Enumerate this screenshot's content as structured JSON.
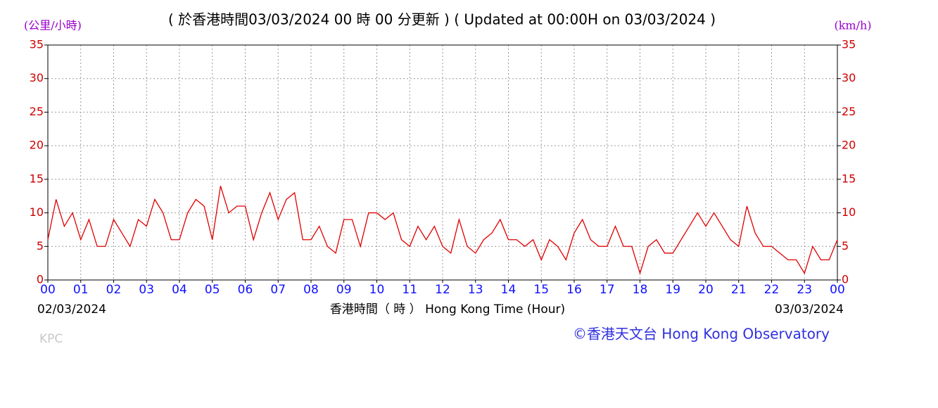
{
  "chart_data": {
    "type": "line",
    "title": "( 於香港時間03/03/2024 00 時 00 分更新 ) ( Updated at 00:00H on 03/03/2024 )",
    "ylabel": "(公里/小時)",
    "y2label": "(km/h)",
    "xlabel": "香港時間（ 時 ） Hong Kong Time (Hour)",
    "start_date": "02/03/2024",
    "end_date": "03/03/2024",
    "watermark": "KPC",
    "credit": "©香港天文台 Hong Kong Observatory",
    "x": [
      0,
      0.25,
      0.5,
      0.75,
      1,
      1.25,
      1.5,
      1.75,
      2,
      2.25,
      2.5,
      2.75,
      3,
      3.25,
      3.5,
      3.75,
      4,
      4.25,
      4.5,
      4.75,
      5,
      5.25,
      5.5,
      5.75,
      6,
      6.25,
      6.5,
      6.75,
      7,
      7.25,
      7.5,
      7.75,
      8,
      8.25,
      8.5,
      8.75,
      9,
      9.25,
      9.5,
      9.75,
      10,
      10.25,
      10.5,
      10.75,
      11,
      11.25,
      11.5,
      11.75,
      12,
      12.25,
      12.5,
      12.75,
      13,
      13.25,
      13.5,
      13.75,
      14,
      14.25,
      14.5,
      14.75,
      15,
      15.25,
      15.5,
      15.75,
      16,
      16.25,
      16.5,
      16.75,
      17,
      17.25,
      17.5,
      17.75,
      18,
      18.25,
      18.5,
      18.75,
      19,
      19.25,
      19.5,
      19.75,
      20,
      20.25,
      20.5,
      20.75,
      21,
      21.25,
      21.5,
      21.75,
      22,
      22.25,
      22.5,
      22.75,
      23,
      23.25,
      23.5,
      23.75,
      24
    ],
    "series": [
      {
        "color": "#e00000",
        "values": [
          6,
          12,
          8,
          10,
          6,
          9,
          5,
          5,
          9,
          7,
          5,
          9,
          8,
          12,
          10,
          6,
          6,
          10,
          12,
          11,
          6,
          14,
          10,
          11,
          11,
          6,
          10,
          13,
          9,
          12,
          13,
          6,
          6,
          8,
          5,
          4,
          9,
          9,
          5,
          10,
          10,
          9,
          10,
          6,
          5,
          8,
          6,
          8,
          5,
          4,
          9,
          5,
          4,
          6,
          7,
          9,
          6,
          6,
          5,
          6,
          3,
          6,
          5,
          3,
          7,
          9,
          6,
          5,
          5,
          8,
          5,
          5,
          1,
          5,
          6,
          4,
          4,
          6,
          8,
          10,
          8,
          10,
          8,
          6,
          5,
          11,
          7,
          5,
          5,
          4,
          3,
          3,
          1,
          5,
          3,
          3,
          6
        ]
      }
    ],
    "xlim": [
      0,
      24
    ],
    "xticks": [
      {
        "value": 0,
        "label": "00"
      },
      {
        "value": 1,
        "label": "01"
      },
      {
        "value": 2,
        "label": "02"
      },
      {
        "value": 3,
        "label": "03"
      },
      {
        "value": 4,
        "label": "04"
      },
      {
        "value": 5,
        "label": "05"
      },
      {
        "value": 6,
        "label": "06"
      },
      {
        "value": 7,
        "label": "07"
      },
      {
        "value": 8,
        "label": "08"
      },
      {
        "value": 9,
        "label": "09"
      },
      {
        "value": 10,
        "label": "10"
      },
      {
        "value": 11,
        "label": "11"
      },
      {
        "value": 12,
        "label": "12"
      },
      {
        "value": 13,
        "label": "13"
      },
      {
        "value": 14,
        "label": "14"
      },
      {
        "value": 15,
        "label": "15"
      },
      {
        "value": 16,
        "label": "16"
      },
      {
        "value": 17,
        "label": "17"
      },
      {
        "value": 18,
        "label": "18"
      },
      {
        "value": 19,
        "label": "19"
      },
      {
        "value": 20,
        "label": "20"
      },
      {
        "value": 21,
        "label": "21"
      },
      {
        "value": 22,
        "label": "22"
      },
      {
        "value": 23,
        "label": "23"
      },
      {
        "value": 24,
        "label": "00"
      }
    ],
    "ylim": [
      0,
      35
    ],
    "yticks": [
      0,
      5,
      10,
      15,
      20,
      25,
      30,
      35
    ],
    "y2lim": [
      0,
      35
    ],
    "y2ticks": [
      0,
      5,
      10,
      15,
      20,
      25,
      30,
      35
    ],
    "grid": true
  }
}
